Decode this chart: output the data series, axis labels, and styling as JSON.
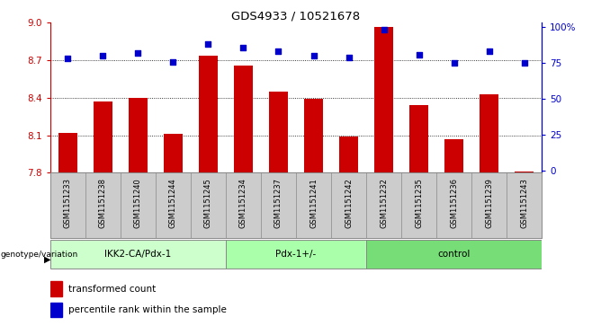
{
  "title": "GDS4933 / 10521678",
  "samples": [
    "GSM1151233",
    "GSM1151238",
    "GSM1151240",
    "GSM1151244",
    "GSM1151245",
    "GSM1151234",
    "GSM1151237",
    "GSM1151241",
    "GSM1151242",
    "GSM1151232",
    "GSM1151235",
    "GSM1151236",
    "GSM1151239",
    "GSM1151243"
  ],
  "bar_values": [
    8.12,
    8.37,
    8.4,
    8.11,
    8.74,
    8.66,
    8.45,
    8.39,
    8.09,
    8.97,
    8.34,
    8.07,
    8.43,
    7.81
  ],
  "percentile_values": [
    78,
    80,
    82,
    76,
    88,
    86,
    83,
    80,
    79,
    98,
    81,
    75,
    83,
    75
  ],
  "groups": [
    {
      "label": "IKK2-CA/Pdx-1",
      "start": 0,
      "end": 5,
      "color": "#ccffcc"
    },
    {
      "label": "Pdx-1+/-",
      "start": 5,
      "end": 9,
      "color": "#aaffaa"
    },
    {
      "label": "control",
      "start": 9,
      "end": 14,
      "color": "#77dd77"
    }
  ],
  "ymin": 7.8,
  "ymax": 9.0,
  "yticks": [
    7.8,
    8.1,
    8.4,
    8.7,
    9.0
  ],
  "right_yticks": [
    0,
    25,
    50,
    75,
    100
  ],
  "bar_color": "#cc0000",
  "dot_color": "#0000cc",
  "grid_color": "#000000",
  "legend_bar_label": "transformed count",
  "legend_dot_label": "percentile rank within the sample",
  "genotype_label": "genotype/variation",
  "sample_bg_color": "#cccccc",
  "group_border_color": "#888888"
}
